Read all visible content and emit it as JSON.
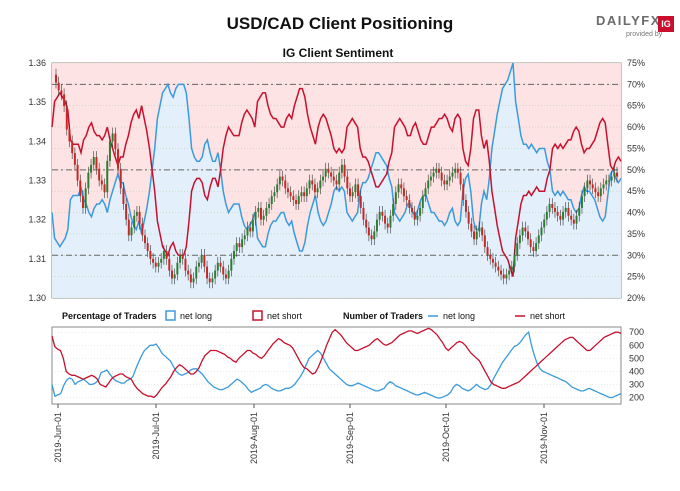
{
  "title": "USD/CAD Client Positioning",
  "logo": {
    "text": "DAILYFX",
    "sub": "provided by",
    "badge": "IG"
  },
  "chart_data": [
    {
      "type": "candlestick+line",
      "title": "IG Client Sentiment",
      "price_axis": {
        "ticks": [
          "1.30",
          "1.31",
          "1.32",
          "1.33",
          "1.34",
          "1.35",
          "1.36"
        ],
        "ylim": [
          1.3,
          1.36
        ]
      },
      "pct_axis": {
        "ticks": [
          "20%",
          "25%",
          "30%",
          "35%",
          "40%",
          "45%",
          "50%",
          "55%",
          "60%",
          "65%",
          "70%",
          "75%"
        ],
        "ylim": [
          20,
          75
        ]
      },
      "reference_lines_pct": [
        30,
        50,
        70
      ],
      "series": [
        {
          "name": "net long",
          "color": "#3a9bdc",
          "unit": "percent",
          "values": [
            40,
            34,
            33,
            32,
            33,
            34,
            36,
            43,
            44,
            44,
            44,
            46,
            43,
            42,
            40,
            39,
            41,
            42,
            42,
            43,
            42,
            40,
            43,
            45,
            47,
            49,
            47,
            47,
            44,
            42,
            39,
            37,
            36,
            38,
            35,
            38,
            41,
            45,
            50,
            55,
            62,
            65,
            68,
            69,
            70,
            68,
            67,
            69,
            70,
            70,
            70,
            68,
            62,
            55,
            53,
            52,
            52,
            53,
            56,
            57,
            54,
            52,
            52,
            54,
            50,
            45,
            42,
            40,
            41,
            42,
            42,
            42,
            39,
            37,
            36,
            37,
            38,
            40,
            34,
            33,
            32,
            32,
            35,
            37,
            38,
            38,
            39,
            40,
            40,
            38,
            37,
            38,
            35,
            33,
            31,
            31,
            33,
            37,
            40,
            42,
            44,
            40,
            38,
            37,
            38,
            40,
            42,
            45,
            46,
            45,
            46,
            45,
            40,
            39,
            38,
            39,
            40,
            45,
            47,
            47,
            48,
            50,
            52,
            54,
            54,
            53,
            52,
            51,
            48,
            46,
            40,
            39,
            38,
            39,
            40,
            42,
            42,
            40,
            39,
            41,
            43,
            44,
            44,
            42,
            40,
            40,
            39,
            38,
            38,
            37,
            38,
            40,
            41,
            38,
            37,
            38,
            45,
            48,
            49,
            45,
            38,
            36,
            36,
            42,
            45,
            43,
            48,
            55,
            59,
            63,
            66,
            69,
            70,
            71,
            73,
            75,
            66,
            62,
            58,
            56,
            56,
            55,
            56,
            55,
            54,
            55,
            55,
            55,
            52,
            50,
            45,
            44,
            45,
            44,
            45,
            44,
            43,
            43,
            41,
            40,
            41,
            44,
            46,
            45,
            45,
            44,
            43,
            41,
            39,
            38,
            39,
            44,
            49,
            50,
            48,
            47,
            48
          ]
        },
        {
          "name": "net short",
          "color": "#c8102e",
          "unit": "percent",
          "values": [
            60,
            66,
            67,
            68,
            67,
            66,
            64,
            57,
            56,
            56,
            56,
            54,
            57,
            58,
            60,
            61,
            59,
            58,
            58,
            57,
            58,
            60,
            57,
            55,
            53,
            51,
            53,
            53,
            56,
            58,
            61,
            63,
            64,
            62,
            65,
            62,
            59,
            55,
            50,
            45,
            38,
            35,
            32,
            31,
            30,
            32,
            33,
            31,
            30,
            30,
            30,
            32,
            38,
            45,
            47,
            48,
            48,
            47,
            44,
            43,
            46,
            48,
            48,
            46,
            50,
            55,
            58,
            60,
            59,
            58,
            58,
            58,
            61,
            63,
            64,
            63,
            62,
            60,
            66,
            67,
            68,
            68,
            65,
            63,
            62,
            62,
            61,
            60,
            60,
            62,
            63,
            62,
            65,
            67,
            69,
            69,
            67,
            63,
            60,
            58,
            56,
            60,
            62,
            63,
            62,
            60,
            58,
            55,
            54,
            55,
            54,
            55,
            60,
            61,
            62,
            61,
            60,
            55,
            53,
            53,
            52,
            50,
            48,
            46,
            46,
            47,
            48,
            49,
            52,
            54,
            60,
            61,
            62,
            61,
            60,
            58,
            58,
            60,
            61,
            59,
            57,
            56,
            56,
            58,
            60,
            60,
            61,
            62,
            62,
            63,
            62,
            60,
            59,
            62,
            63,
            62,
            55,
            52,
            51,
            55,
            62,
            64,
            64,
            58,
            55,
            57,
            52,
            45,
            41,
            37,
            34,
            31,
            30,
            29,
            27,
            25,
            34,
            38,
            42,
            44,
            44,
            45,
            44,
            45,
            46,
            45,
            45,
            45,
            48,
            50,
            55,
            56,
            55,
            56,
            55,
            56,
            57,
            57,
            59,
            60,
            59,
            56,
            54,
            55,
            55,
            56,
            57,
            59,
            61,
            62,
            61,
            56,
            51,
            50,
            52,
            53,
            52
          ]
        }
      ],
      "price_ohlc_close": [
        1.355,
        1.353,
        1.352,
        1.349,
        1.343,
        1.34,
        1.337,
        1.334,
        1.33,
        1.326,
        1.323,
        1.328,
        1.332,
        1.334,
        1.336,
        1.333,
        1.33,
        1.329,
        1.327,
        1.335,
        1.34,
        1.342,
        1.338,
        1.333,
        1.328,
        1.324,
        1.32,
        1.316,
        1.318,
        1.321,
        1.322,
        1.319,
        1.316,
        1.314,
        1.312,
        1.31,
        1.309,
        1.308,
        1.309,
        1.31,
        1.312,
        1.31,
        1.307,
        1.305,
        1.306,
        1.309,
        1.311,
        1.31,
        1.307,
        1.306,
        1.304,
        1.305,
        1.308,
        1.309,
        1.311,
        1.308,
        1.305,
        1.304,
        1.305,
        1.307,
        1.309,
        1.308,
        1.306,
        1.305,
        1.307,
        1.31,
        1.312,
        1.314,
        1.313,
        1.315,
        1.316,
        1.318,
        1.317,
        1.32,
        1.322,
        1.323,
        1.32,
        1.321,
        1.323,
        1.324,
        1.326,
        1.327,
        1.329,
        1.331,
        1.33,
        1.328,
        1.327,
        1.326,
        1.325,
        1.324,
        1.326,
        1.327,
        1.326,
        1.328,
        1.33,
        1.329,
        1.327,
        1.328,
        1.33,
        1.331,
        1.333,
        1.332,
        1.331,
        1.33,
        1.329,
        1.332,
        1.334,
        1.331,
        1.328,
        1.326,
        1.327,
        1.329,
        1.326,
        1.323,
        1.32,
        1.318,
        1.316,
        1.315,
        1.317,
        1.32,
        1.322,
        1.321,
        1.319,
        1.318,
        1.321,
        1.324,
        1.327,
        1.329,
        1.328,
        1.326,
        1.325,
        1.323,
        1.322,
        1.32,
        1.321,
        1.323,
        1.326,
        1.328,
        1.33,
        1.331,
        1.332,
        1.333,
        1.332,
        1.33,
        1.329,
        1.33,
        1.331,
        1.332,
        1.333,
        1.332,
        1.329,
        1.325,
        1.322,
        1.319,
        1.317,
        1.315,
        1.317,
        1.318,
        1.316,
        1.313,
        1.311,
        1.31,
        1.309,
        1.308,
        1.307,
        1.306,
        1.305,
        1.306,
        1.307,
        1.308,
        1.311,
        1.314,
        1.316,
        1.318,
        1.317,
        1.315,
        1.313,
        1.312,
        1.314,
        1.316,
        1.318,
        1.32,
        1.322,
        1.324,
        1.323,
        1.322,
        1.321,
        1.32,
        1.322,
        1.323,
        1.321,
        1.32,
        1.319,
        1.321,
        1.323,
        1.326,
        1.328,
        1.33,
        1.329,
        1.328,
        1.327,
        1.326,
        1.328,
        1.329,
        1.33,
        1.33,
        1.331,
        1.332,
        1.331
      ]
    },
    {
      "type": "line",
      "legend": {
        "pct_title": "Percentage of Traders",
        "num_title": "Number of Traders",
        "net_long": "net long",
        "net_short": "net short"
      },
      "y_axis": {
        "ticks": [
          "200",
          "300",
          "400",
          "500",
          "600",
          "700"
        ],
        "ylim": [
          150,
          740
        ]
      },
      "x_tick_labels": [
        "2019-Jun-01",
        "2019-Jul-01",
        "2019-Aug-01",
        "2019-Sep-01",
        "2019-Oct-01",
        "2019-Nov-01"
      ],
      "series": [
        {
          "name": "net long",
          "color": "#3a9bdc",
          "values": [
            300,
            210,
            220,
            230,
            290,
            330,
            350,
            340,
            300,
            320,
            330,
            340,
            320,
            300,
            300,
            310,
            330,
            390,
            400,
            410,
            380,
            350,
            330,
            320,
            310,
            310,
            330,
            340,
            360,
            420,
            470,
            520,
            560,
            580,
            600,
            600,
            610,
            580,
            540,
            520,
            500,
            480,
            440,
            400,
            380,
            370,
            380,
            390,
            410,
            420,
            420,
            400,
            380,
            350,
            320,
            300,
            280,
            270,
            260,
            260,
            270,
            280,
            300,
            320,
            340,
            330,
            310,
            290,
            260,
            240,
            250,
            260,
            270,
            290,
            300,
            290,
            270,
            260,
            250,
            250,
            260,
            270,
            270,
            280,
            300,
            330,
            360,
            400,
            450,
            500,
            520,
            540,
            560,
            540,
            500,
            460,
            420,
            400,
            380,
            360,
            340,
            320,
            300,
            290,
            290,
            300,
            310,
            300,
            290,
            280,
            270,
            260,
            250,
            250,
            260,
            270,
            300,
            320,
            310,
            290,
            280,
            270,
            260,
            250,
            240,
            230,
            220,
            220,
            230,
            240,
            230,
            220,
            210,
            200,
            195,
            200,
            210,
            220,
            240,
            280,
            300,
            290,
            270,
            260,
            250,
            260,
            280,
            300,
            280,
            270,
            260,
            270,
            300,
            350,
            390,
            430,
            470,
            500,
            530,
            560,
            590,
            600,
            620,
            650,
            680,
            700,
            600,
            520,
            460,
            420,
            400,
            390,
            380,
            370,
            360,
            350,
            340,
            330,
            320,
            300,
            280,
            270,
            260,
            250,
            250,
            260,
            270,
            260,
            250,
            240,
            230,
            220,
            210,
            200,
            200,
            210,
            220,
            230
          ]
        },
        {
          "name": "net short",
          "color": "#c8102e",
          "values": [
            670,
            590,
            570,
            560,
            500,
            400,
            380,
            370,
            370,
            360,
            350,
            340,
            350,
            360,
            370,
            360,
            340,
            300,
            290,
            280,
            310,
            340,
            360,
            370,
            380,
            380,
            360,
            350,
            340,
            300,
            270,
            250,
            230,
            220,
            210,
            210,
            200,
            220,
            250,
            280,
            300,
            330,
            360,
            400,
            430,
            450,
            440,
            420,
            400,
            380,
            380,
            400,
            430,
            480,
            520,
            540,
            560,
            560,
            560,
            550,
            540,
            530,
            510,
            500,
            480,
            470,
            500,
            520,
            540,
            560,
            560,
            540,
            530,
            510,
            500,
            520,
            550,
            580,
            610,
            630,
            650,
            640,
            620,
            610,
            600,
            580,
            540,
            500,
            460,
            430,
            420,
            400,
            380,
            390,
            430,
            480,
            540,
            600,
            650,
            700,
            720,
            700,
            680,
            650,
            620,
            600,
            580,
            560,
            560,
            570,
            580,
            590,
            600,
            620,
            640,
            650,
            630,
            610,
            600,
            610,
            620,
            640,
            660,
            680,
            690,
            700,
            710,
            710,
            700,
            690,
            700,
            710,
            720,
            730,
            720,
            700,
            680,
            650,
            620,
            580,
            560,
            580,
            600,
            620,
            630,
            620,
            600,
            570,
            540,
            520,
            500,
            480,
            440,
            400,
            360,
            320,
            300,
            290,
            280,
            270,
            270,
            280,
            290,
            300,
            310,
            320,
            340,
            360,
            380,
            400,
            420,
            440,
            460,
            480,
            500,
            520,
            540,
            560,
            580,
            600,
            620,
            640,
            650,
            660,
            660,
            640,
            620,
            600,
            580,
            560,
            560,
            580,
            600,
            620,
            640,
            660,
            670,
            680,
            690,
            700,
            700,
            690
          ]
        }
      ]
    }
  ]
}
